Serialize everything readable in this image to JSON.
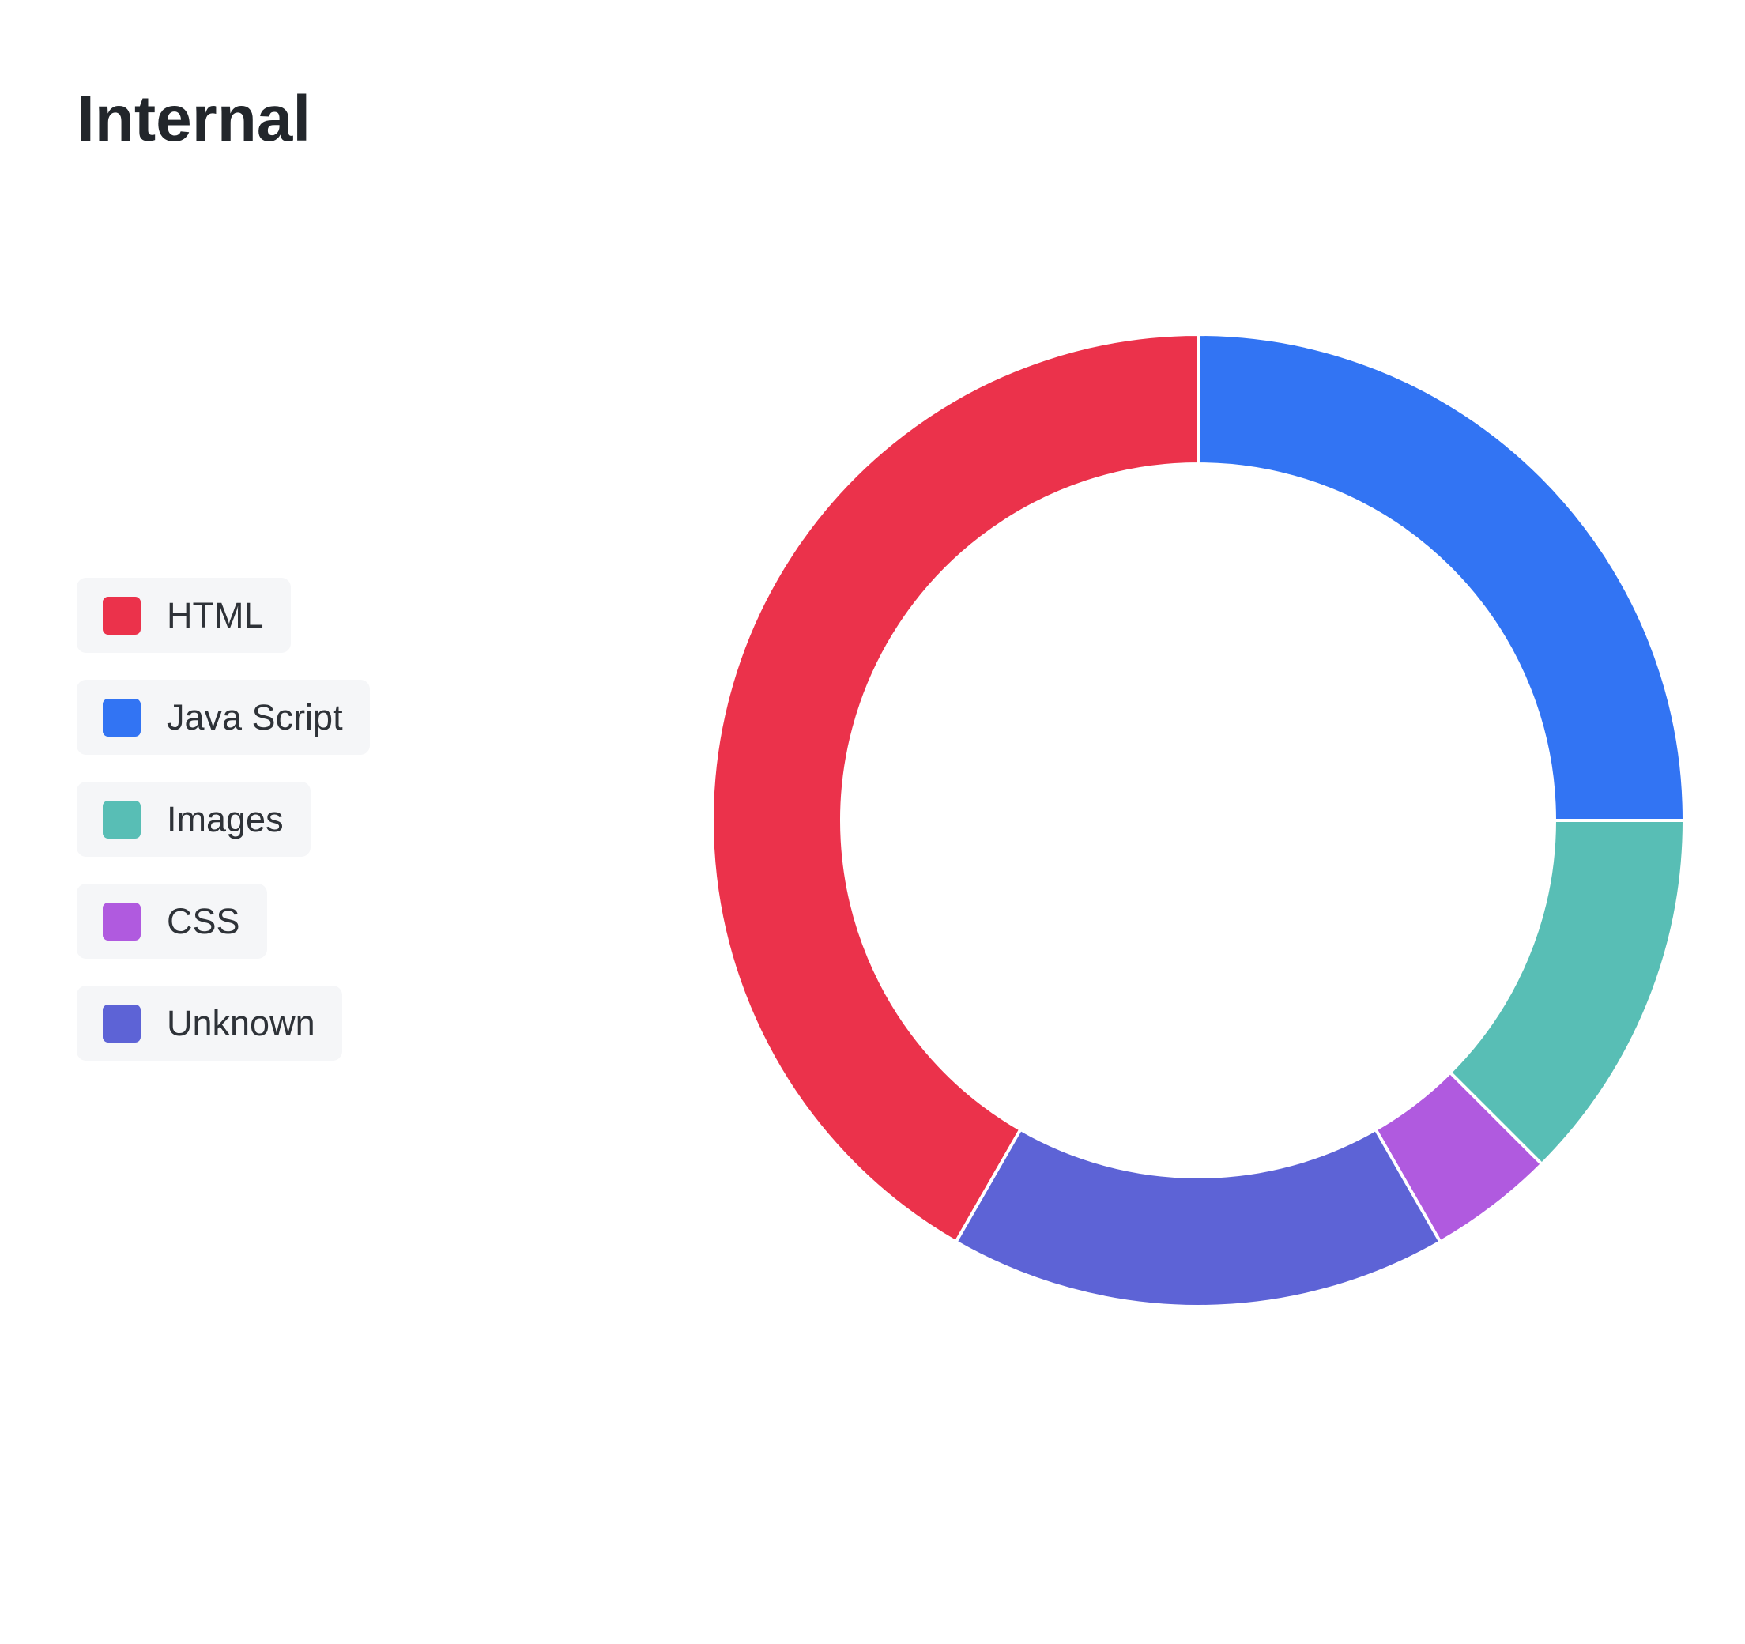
{
  "chart_data": {
    "type": "doughnut",
    "title": "Internal",
    "categories": [
      "HTML",
      "Java Script",
      "Images",
      "CSS",
      "Unknown"
    ],
    "values": [
      41.7,
      25,
      12.5,
      4.2,
      16.6
    ],
    "colors": [
      "#eb324b",
      "#3274f3",
      "#58beb5",
      "#b05adf",
      "#5d63d6"
    ],
    "legend": "left"
  }
}
